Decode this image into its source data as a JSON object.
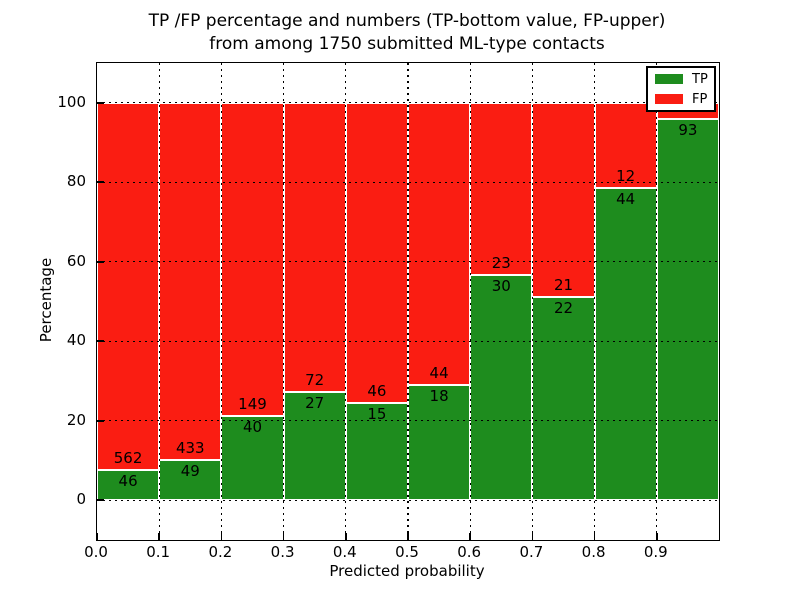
{
  "title_line1": "TP /FP percentage and numbers (TP-bottom value, FP-upper)",
  "title_line2": "from among 1750 submitted ML-type contacts",
  "chart_data": {
    "type": "bar",
    "stacked": true,
    "title": "TP /FP percentage and numbers (TP-bottom value, FP-upper) from among 1750 submitted ML-type contacts",
    "xlabel": "Predicted probability",
    "ylabel": "Percentage",
    "xlim": [
      0.0,
      1.0
    ],
    "ylim": [
      -10,
      110
    ],
    "x_tick_labels": [
      "0.0",
      "0.1",
      "0.2",
      "0.3",
      "0.4",
      "0.5",
      "0.6",
      "0.7",
      "0.8",
      "0.9"
    ],
    "y_tick_values": [
      0,
      20,
      40,
      60,
      80,
      100
    ],
    "grid": "dotted",
    "bin_edges": [
      0.0,
      0.1,
      0.2,
      0.3,
      0.4,
      0.5,
      0.6,
      0.7,
      0.8,
      0.9,
      1.0
    ],
    "categories": [
      "0.0-0.1",
      "0.1-0.2",
      "0.2-0.3",
      "0.3-0.4",
      "0.4-0.5",
      "0.5-0.6",
      "0.6-0.7",
      "0.7-0.8",
      "0.8-0.9",
      "0.9-1.0"
    ],
    "series": [
      {
        "name": "TP",
        "color": "#1e8c1e",
        "counts": [
          46,
          49,
          40,
          27,
          15,
          18,
          30,
          22,
          44,
          93
        ],
        "percent": [
          7.57,
          10.17,
          21.16,
          27.27,
          24.59,
          29.03,
          56.6,
          51.16,
          78.57,
          95.88
        ]
      },
      {
        "name": "FP",
        "color": "#fa1d12",
        "counts": [
          562,
          433,
          149,
          72,
          46,
          44,
          23,
          21,
          12,
          null
        ],
        "percent": [
          92.43,
          89.83,
          78.84,
          72.73,
          75.41,
          70.97,
          43.4,
          48.84,
          21.43,
          4.12
        ]
      }
    ],
    "legend": {
      "position": "upper right",
      "entries": [
        "TP",
        "FP"
      ]
    }
  }
}
